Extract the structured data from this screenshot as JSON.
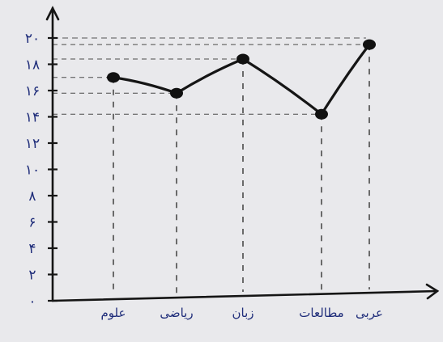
{
  "chart_data": {
    "type": "line",
    "categories": [
      "علوم",
      "ریاضی",
      "زبان",
      "مطالعات",
      "عربی"
    ],
    "values": [
      17,
      15.8,
      18.4,
      14.2,
      19.5
    ],
    "y_tick_labels": [
      "۰",
      "۲",
      "۴",
      "۶",
      "۸",
      "۱۰",
      "۱۲",
      "۱۴",
      "۱۶",
      "۱۸",
      "۲۰"
    ],
    "ylim": [
      0,
      20
    ],
    "grid": "dashed guides to each point",
    "title": "",
    "xlabel": "",
    "ylabel": "",
    "colors": {
      "ink": "#151515",
      "labels": "#1f2d7a",
      "paper": "#e9e9ec"
    }
  }
}
